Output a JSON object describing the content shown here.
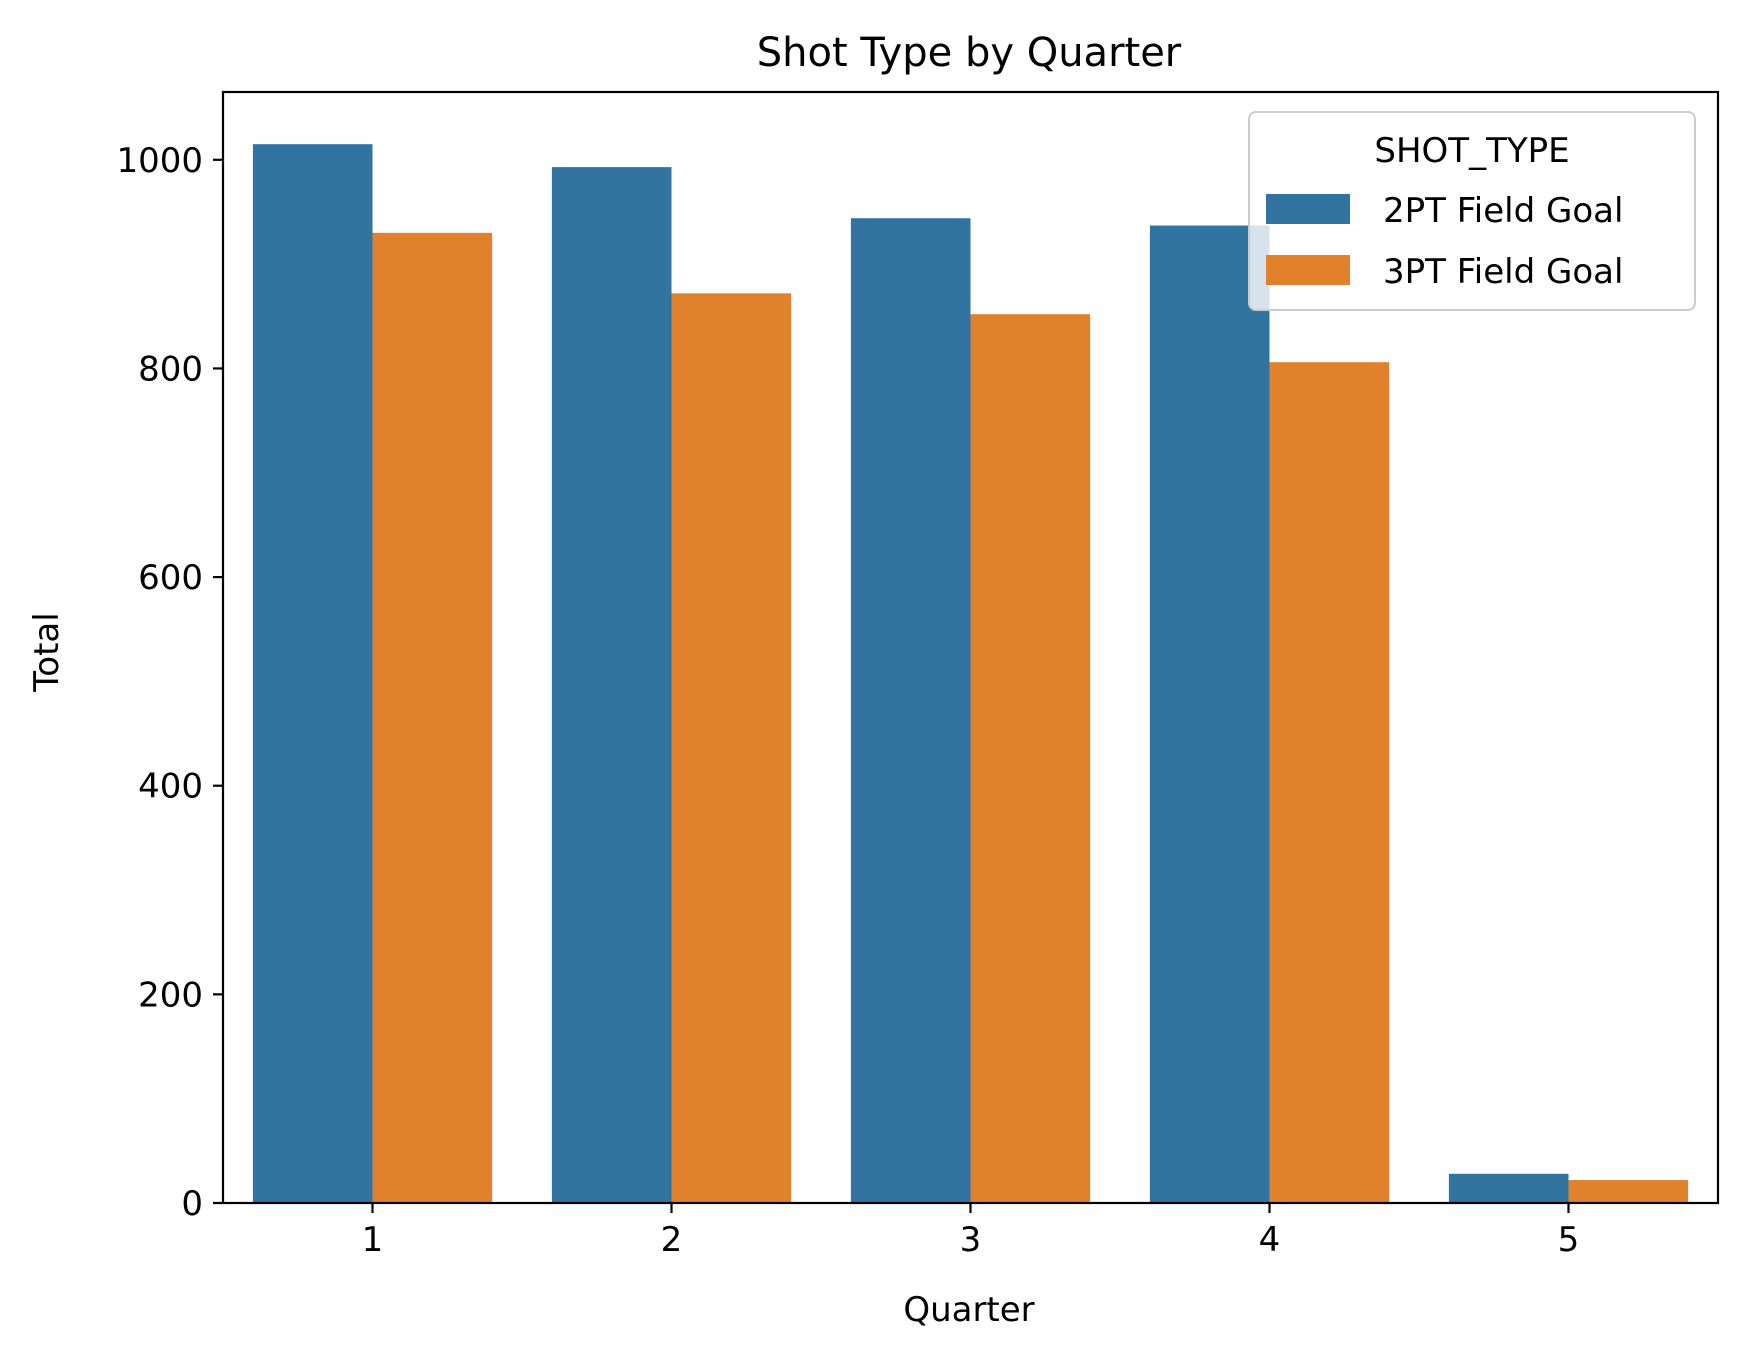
{
  "chart_data": {
    "type": "bar",
    "title": "Shot Type by Quarter",
    "xlabel": "Quarter",
    "ylabel": "Total",
    "categories": [
      "1",
      "2",
      "3",
      "4",
      "5"
    ],
    "series": [
      {
        "name": "2PT Field Goal",
        "color": "#3274a1",
        "values": [
          1015,
          993,
          944,
          937,
          28
        ]
      },
      {
        "name": "3PT Field Goal",
        "color": "#e1812c",
        "values": [
          930,
          872,
          852,
          806,
          22
        ]
      }
    ],
    "ylim": [
      0,
      1065
    ],
    "yticks": [
      0,
      200,
      400,
      600,
      800,
      1000
    ],
    "legend": {
      "title": "SHOT_TYPE",
      "placement": "top-right"
    },
    "grid": false
  }
}
